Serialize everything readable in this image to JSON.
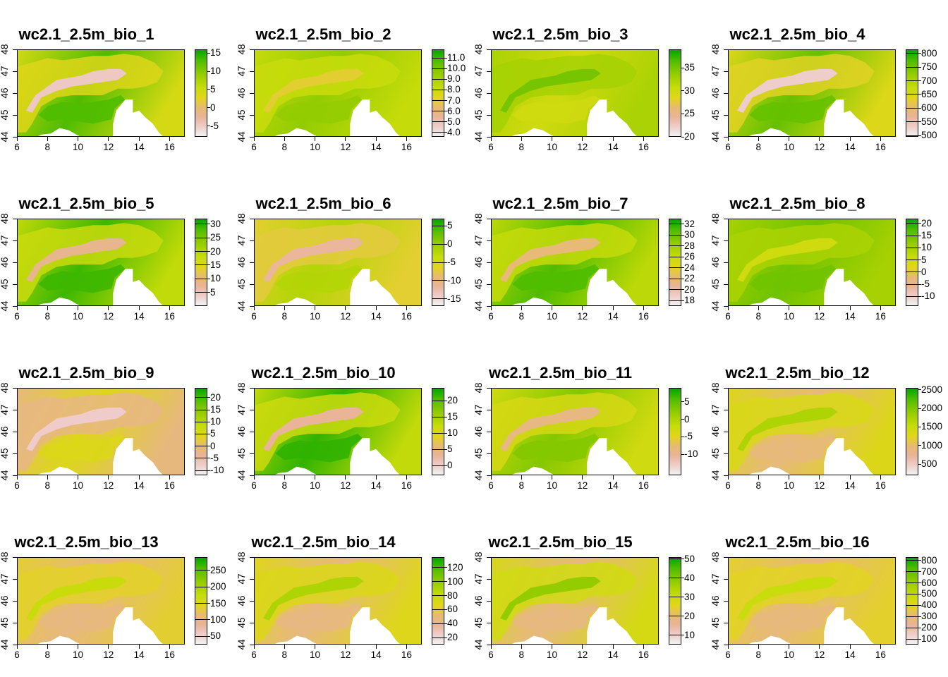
{
  "colors": {
    "ramp": [
      "#F2F2F2",
      "#EFCCC9",
      "#E9B497",
      "#E6BB6F",
      "#E2D51C",
      "#C8DC0B",
      "#A7D103",
      "#7DC600",
      "#48BA00",
      "#00A600"
    ],
    "sea": "#ffffff"
  },
  "chart_data": [
    {
      "type": "heatmap",
      "title": "wc2.1_2.5m_bio_1",
      "xlim": [
        6,
        17
      ],
      "ylim": [
        44,
        48
      ],
      "x_ticks": [
        "6",
        "8",
        "10",
        "12",
        "14",
        "16"
      ],
      "y_ticks": [
        "44",
        "45",
        "46",
        "47",
        "48"
      ],
      "legend_range": [
        -8,
        16
      ],
      "legend_ticks": [
        "15",
        "10",
        "5",
        "0",
        "-5"
      ],
      "legend_style": "continuous",
      "lowland_value": 13,
      "mountain_value": -5
    },
    {
      "type": "heatmap",
      "title": "wc2.1_2.5m_bio_2",
      "xlim": [
        6,
        17
      ],
      "ylim": [
        44,
        48
      ],
      "x_ticks": [
        "6",
        "8",
        "10",
        "12",
        "14",
        "16"
      ],
      "y_ticks": [
        "44",
        "45",
        "46",
        "47",
        "48"
      ],
      "legend_range": [
        3.6,
        11.8
      ],
      "legend_ticks": [
        "11.0",
        "10.0",
        "9.0",
        "8.0",
        "7.0",
        "6.0",
        "5.0",
        "4.0"
      ],
      "legend_style": "classes",
      "lowland_value": 9.5,
      "mountain_value": 7.0
    },
    {
      "type": "heatmap",
      "title": "wc2.1_2.5m_bio_3",
      "xlim": [
        6,
        17
      ],
      "ylim": [
        44,
        48
      ],
      "x_ticks": [
        "6",
        "8",
        "10",
        "12",
        "14",
        "16"
      ],
      "y_ticks": [
        "44",
        "45",
        "46",
        "47",
        "48"
      ],
      "legend_range": [
        20,
        39
      ],
      "legend_ticks": [
        "35",
        "30",
        "25",
        "20"
      ],
      "legend_style": "continuous",
      "lowland_value": 30,
      "mountain_value": 35
    },
    {
      "type": "heatmap",
      "title": "wc2.1_2.5m_bio_4",
      "xlim": [
        6,
        17
      ],
      "ylim": [
        44,
        48
      ],
      "x_ticks": [
        "6",
        "8",
        "10",
        "12",
        "14",
        "16"
      ],
      "y_ticks": [
        "44",
        "45",
        "46",
        "47",
        "48"
      ],
      "legend_range": [
        495,
        815
      ],
      "legend_ticks": [
        "800",
        "750",
        "700",
        "650",
        "600",
        "550",
        "500"
      ],
      "legend_style": "classes",
      "lowland_value": 760,
      "mountain_value": 530
    },
    {
      "type": "heatmap",
      "title": "wc2.1_2.5m_bio_5",
      "xlim": [
        6,
        17
      ],
      "ylim": [
        44,
        48
      ],
      "x_ticks": [
        "6",
        "8",
        "10",
        "12",
        "14",
        "16"
      ],
      "y_ticks": [
        "44",
        "45",
        "46",
        "47",
        "48"
      ],
      "legend_range": [
        0,
        32
      ],
      "legend_ticks": [
        "30",
        "25",
        "20",
        "15",
        "10",
        "5"
      ],
      "legend_style": "classes",
      "lowland_value": 29,
      "mountain_value": 8
    },
    {
      "type": "heatmap",
      "title": "wc2.1_2.5m_bio_6",
      "xlim": [
        6,
        17
      ],
      "ylim": [
        44,
        48
      ],
      "x_ticks": [
        "6",
        "8",
        "10",
        "12",
        "14",
        "16"
      ],
      "y_ticks": [
        "44",
        "45",
        "46",
        "47",
        "48"
      ],
      "legend_range": [
        -17,
        7
      ],
      "legend_ticks": [
        "5",
        "0",
        "-5",
        "-10",
        "-15"
      ],
      "legend_style": "classes",
      "lowland_value": -2,
      "mountain_value": -12
    },
    {
      "type": "heatmap",
      "title": "wc2.1_2.5m_bio_7",
      "xlim": [
        6,
        17
      ],
      "ylim": [
        44,
        48
      ],
      "x_ticks": [
        "6",
        "8",
        "10",
        "12",
        "14",
        "16"
      ],
      "y_ticks": [
        "44",
        "45",
        "46",
        "47",
        "48"
      ],
      "legend_range": [
        17,
        33
      ],
      "legend_ticks": [
        "32",
        "30",
        "28",
        "26",
        "24",
        "22",
        "20",
        "18"
      ],
      "legend_style": "classes",
      "lowland_value": 31,
      "mountain_value": 22
    },
    {
      "type": "heatmap",
      "title": "wc2.1_2.5m_bio_8",
      "xlim": [
        6,
        17
      ],
      "ylim": [
        44,
        48
      ],
      "x_ticks": [
        "6",
        "8",
        "10",
        "12",
        "14",
        "16"
      ],
      "y_ticks": [
        "44",
        "45",
        "46",
        "47",
        "48"
      ],
      "legend_range": [
        -14,
        22
      ],
      "legend_ticks": [
        "20",
        "15",
        "10",
        "5",
        "0",
        "-5",
        "-10"
      ],
      "legend_style": "classes",
      "lowland_value": 15,
      "mountain_value": 5
    },
    {
      "type": "heatmap",
      "title": "wc2.1_2.5m_bio_9",
      "xlim": [
        6,
        17
      ],
      "ylim": [
        44,
        48
      ],
      "x_ticks": [
        "6",
        "8",
        "10",
        "12",
        "14",
        "16"
      ],
      "y_ticks": [
        "44",
        "45",
        "46",
        "47",
        "48"
      ],
      "legend_range": [
        -12,
        24
      ],
      "legend_ticks": [
        "20",
        "15",
        "10",
        "5",
        "0",
        "-5",
        "-10"
      ],
      "legend_style": "classes",
      "lowland_value": 5,
      "mountain_value": -8
    },
    {
      "type": "heatmap",
      "title": "wc2.1_2.5m_bio_10",
      "xlim": [
        6,
        17
      ],
      "ylim": [
        44,
        48
      ],
      "x_ticks": [
        "6",
        "8",
        "10",
        "12",
        "14",
        "16"
      ],
      "y_ticks": [
        "44",
        "45",
        "46",
        "47",
        "48"
      ],
      "legend_range": [
        -3,
        24
      ],
      "legend_ticks": [
        "20",
        "15",
        "10",
        "5",
        "0"
      ],
      "legend_style": "classes",
      "lowland_value": 22,
      "mountain_value": 3
    },
    {
      "type": "heatmap",
      "title": "wc2.1_2.5m_bio_11",
      "xlim": [
        6,
        17
      ],
      "ylim": [
        44,
        48
      ],
      "x_ticks": [
        "6",
        "8",
        "10",
        "12",
        "14",
        "16"
      ],
      "y_ticks": [
        "44",
        "45",
        "46",
        "47",
        "48"
      ],
      "legend_range": [
        -16,
        9
      ],
      "legend_ticks": [
        "5",
        "0",
        "-5",
        "-10"
      ],
      "legend_style": "continuous",
      "lowland_value": 3,
      "mountain_value": -9
    },
    {
      "type": "heatmap",
      "title": "wc2.1_2.5m_bio_12",
      "xlim": [
        6,
        17
      ],
      "ylim": [
        44,
        48
      ],
      "x_ticks": [
        "6",
        "8",
        "10",
        "12",
        "14",
        "16"
      ],
      "y_ticks": [
        "44",
        "45",
        "46",
        "47",
        "48"
      ],
      "legend_range": [
        200,
        2550
      ],
      "legend_ticks": [
        "2500",
        "2000",
        "1500",
        "1000",
        "500"
      ],
      "legend_style": "continuous",
      "lowland_value": 900,
      "mountain_value": 1700
    },
    {
      "type": "heatmap",
      "title": "wc2.1_2.5m_bio_13",
      "xlim": [
        6,
        17
      ],
      "ylim": [
        44,
        48
      ],
      "x_ticks": [
        "6",
        "8",
        "10",
        "12",
        "14",
        "16"
      ],
      "y_ticks": [
        "44",
        "45",
        "46",
        "47",
        "48"
      ],
      "legend_range": [
        25,
        290
      ],
      "legend_ticks": [
        "250",
        "200",
        "150",
        "100",
        "50"
      ],
      "legend_style": "classes",
      "lowland_value": 100,
      "mountain_value": 170
    },
    {
      "type": "heatmap",
      "title": "wc2.1_2.5m_bio_14",
      "xlim": [
        6,
        17
      ],
      "ylim": [
        44,
        48
      ],
      "x_ticks": [
        "6",
        "8",
        "10",
        "12",
        "14",
        "16"
      ],
      "y_ticks": [
        "44",
        "45",
        "46",
        "47",
        "48"
      ],
      "legend_range": [
        10,
        135
      ],
      "legend_ticks": [
        "120",
        "100",
        "80",
        "60",
        "40",
        "20"
      ],
      "legend_style": "classes",
      "lowland_value": 45,
      "mountain_value": 90
    },
    {
      "type": "heatmap",
      "title": "wc2.1_2.5m_bio_15",
      "xlim": [
        6,
        17
      ],
      "ylim": [
        44,
        48
      ],
      "x_ticks": [
        "6",
        "8",
        "10",
        "12",
        "14",
        "16"
      ],
      "y_ticks": [
        "44",
        "45",
        "46",
        "47",
        "48"
      ],
      "legend_range": [
        5,
        51
      ],
      "legend_ticks": [
        "50",
        "40",
        "30",
        "20",
        "10"
      ],
      "legend_style": "classes",
      "lowland_value": 18,
      "mountain_value": 38
    },
    {
      "type": "heatmap",
      "title": "wc2.1_2.5m_bio_16",
      "xlim": [
        6,
        17
      ],
      "ylim": [
        44,
        48
      ],
      "x_ticks": [
        "6",
        "8",
        "10",
        "12",
        "14",
        "16"
      ],
      "y_ticks": [
        "44",
        "45",
        "46",
        "47",
        "48"
      ],
      "legend_range": [
        50,
        830
      ],
      "legend_ticks": [
        "800",
        "700",
        "600",
        "500",
        "400",
        "300",
        "200",
        "100"
      ],
      "legend_style": "classes",
      "lowland_value": 280,
      "mountain_value": 480
    }
  ]
}
